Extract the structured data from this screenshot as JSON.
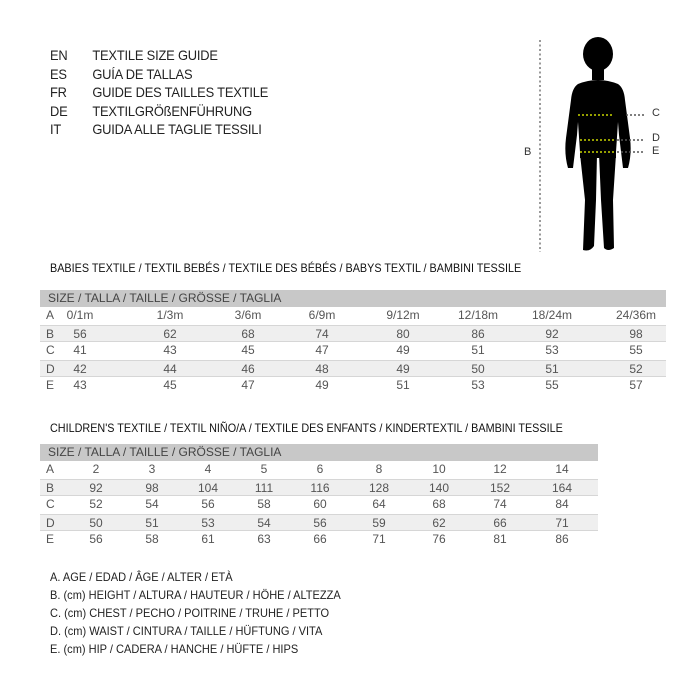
{
  "languages": [
    {
      "code": "EN",
      "text": "TEXTILE SIZE GUIDE"
    },
    {
      "code": "ES",
      "text": "GUÍA DE TALLAS"
    },
    {
      "code": "FR",
      "text": "GUIDE DES TAILLES TEXTILE"
    },
    {
      "code": "DE",
      "text": "TEXTILGRÖßENFÜHRUNG"
    },
    {
      "code": "IT",
      "text": "GUIDA ALLE TAGLIE TESSILI"
    }
  ],
  "figure": {
    "height_label": "B",
    "chest_label": "C",
    "waist_label": "D",
    "hip_label": "E",
    "measure_line_color": "#c8d400"
  },
  "babies": {
    "title": "BABIES TEXTILE / TEXTIL BEBÉS / TEXTILE DES BÉBÉS / BABYS TEXTIL  / BAMBINI TESSILE",
    "header": "SIZE / TALLA / TAILLE / GRÖSSE / TAGLIA",
    "rows": [
      {
        "label": "A",
        "values": [
          "0/1m",
          "1/3m",
          "3/6m",
          "6/9m",
          "9/12m",
          "12/18m",
          "18/24m",
          "24/36m"
        ]
      },
      {
        "label": "B",
        "values": [
          "56",
          "62",
          "68",
          "74",
          "80",
          "86",
          "92",
          "98"
        ]
      },
      {
        "label": "C",
        "values": [
          "41",
          "43",
          "45",
          "47",
          "49",
          "51",
          "53",
          "55"
        ]
      },
      {
        "label": "D",
        "values": [
          "42",
          "44",
          "46",
          "48",
          "49",
          "50",
          "51",
          "52"
        ]
      },
      {
        "label": "E",
        "values": [
          "43",
          "45",
          "47",
          "49",
          "51",
          "53",
          "55",
          "57"
        ]
      }
    ]
  },
  "children": {
    "title": "CHILDREN'S TEXTILE / TEXTIL NIÑO/A / TEXTILE DES ENFANTS / KINDERTEXTIL / BAMBINI TESSILE",
    "header": "SIZE / TALLA / TAILLE / GRÖSSE / TAGLIA",
    "rows": [
      {
        "label": "A",
        "values": [
          "2",
          "3",
          "4",
          "5",
          "6",
          "8",
          "10",
          "12",
          "14"
        ]
      },
      {
        "label": "B",
        "values": [
          "92",
          "98",
          "104",
          "111",
          "116",
          "128",
          "140",
          "152",
          "164"
        ]
      },
      {
        "label": "C",
        "values": [
          "52",
          "54",
          "56",
          "58",
          "60",
          "64",
          "68",
          "74",
          "84"
        ]
      },
      {
        "label": "D",
        "values": [
          "50",
          "51",
          "53",
          "54",
          "56",
          "59",
          "62",
          "66",
          "71"
        ]
      },
      {
        "label": "E",
        "values": [
          "56",
          "58",
          "61",
          "63",
          "66",
          "71",
          "76",
          "81",
          "86"
        ]
      }
    ]
  },
  "legend": [
    "A. AGE / EDAD / ÂGE / ALTER / ETÀ",
    "B. (cm) HEIGHT / ALTURA / HAUTEUR / HÖHE / ALTEZZA",
    "C. (cm) CHEST / PECHO / POITRINE / TRUHE / PETTO",
    "D. (cm) WAIST / CINTURA / TAILLE / HÜFTUNG / VITA",
    "E. (cm) HIP / CADERA / HANCHE / HÜFTE / HIPS"
  ]
}
